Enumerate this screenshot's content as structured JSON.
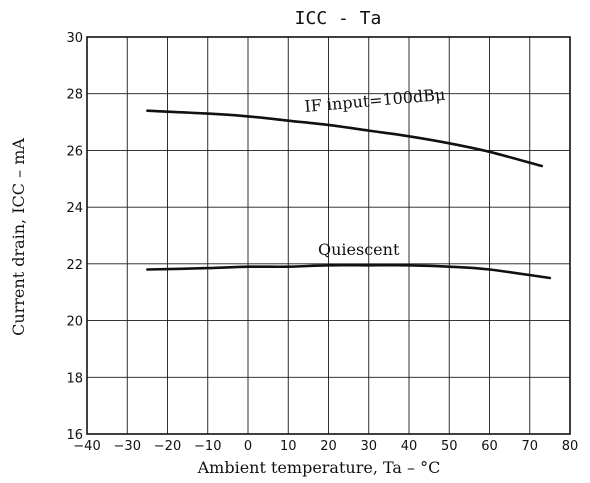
{
  "chart_data": {
    "type": "line",
    "title": "ICC - Ta",
    "xlabel": "Ambient temperature, Ta  –  °C",
    "ylabel": "Current drain, ICC  –  mA",
    "xlim": [
      -40,
      80
    ],
    "ylim": [
      16,
      30
    ],
    "xticks": [
      -40,
      -30,
      -20,
      -10,
      0,
      10,
      20,
      30,
      40,
      50,
      60,
      70,
      80
    ],
    "yticks": [
      16,
      18,
      20,
      22,
      24,
      26,
      28,
      30
    ],
    "grid": true,
    "series": [
      {
        "name": "IF input=100dBμ",
        "x": [
          -25,
          -10,
          0,
          10,
          20,
          30,
          40,
          50,
          60,
          73
        ],
        "y": [
          27.4,
          27.3,
          27.2,
          27.05,
          26.9,
          26.7,
          26.5,
          26.25,
          25.95,
          25.45
        ]
      },
      {
        "name": "Quiescent",
        "x": [
          -25,
          -10,
          0,
          10,
          20,
          30,
          40,
          50,
          60,
          75
        ],
        "y": [
          21.8,
          21.85,
          21.9,
          21.9,
          21.95,
          21.95,
          21.95,
          21.9,
          21.8,
          21.5
        ]
      }
    ]
  }
}
